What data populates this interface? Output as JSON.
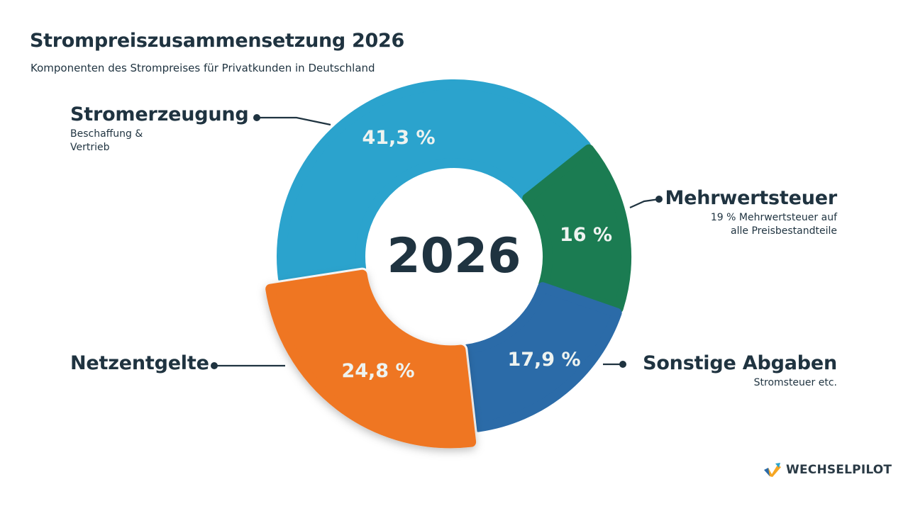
{
  "header": {
    "title": "Strompreiszusammensetzung 2026",
    "subtitle": "Komponenten des Strompreises für Privatkunden in Deutschland"
  },
  "center": {
    "year": "2026"
  },
  "segments": [
    {
      "name": "Stromerzeugung",
      "desc_line1": "Beschaffung &",
      "desc_line2": "Vertrieb",
      "pct_label": "41,3 %",
      "value": 41.3,
      "color": "#2ba3cd"
    },
    {
      "name": "Mehrwertsteuer",
      "desc_line1": "19 % Mehrwertsteuer auf",
      "desc_line2": "alle Preisbestandteile",
      "pct_label": "16 %",
      "value": 16,
      "color": "#1b7c52"
    },
    {
      "name": "Sonstige Abgaben",
      "desc_line1": "Stromsteuer etc.",
      "pct_label": "17,9 %",
      "value": 17.9,
      "color": "#2b6ba8"
    },
    {
      "name": "Netzentgelte",
      "pct_label": "24,8 %",
      "value": 24.8,
      "color": "#ef7622"
    }
  ],
  "logo": {
    "text": "WECHSELPILOT"
  },
  "chart_data": {
    "type": "pie",
    "variant": "donut",
    "title": "Strompreiszusammensetzung 2026",
    "subtitle": "Komponenten des Strompreises für Privatkunden in Deutschland",
    "center_label": "2026",
    "categories": [
      "Stromerzeugung",
      "Mehrwertsteuer",
      "Sonstige Abgaben",
      "Netzentgelte"
    ],
    "values": [
      41.3,
      16,
      17.9,
      24.8
    ],
    "unit": "%",
    "annotations": {
      "Stromerzeugung": "Beschaffung & Vertrieb",
      "Mehrwertsteuer": "19 % Mehrwertsteuer auf alle Preisbestandteile",
      "Sonstige Abgaben": "Stromsteuer etc."
    },
    "colors": [
      "#2ba3cd",
      "#1b7c52",
      "#2b6ba8",
      "#ef7622"
    ],
    "legend_position": "callouts"
  }
}
